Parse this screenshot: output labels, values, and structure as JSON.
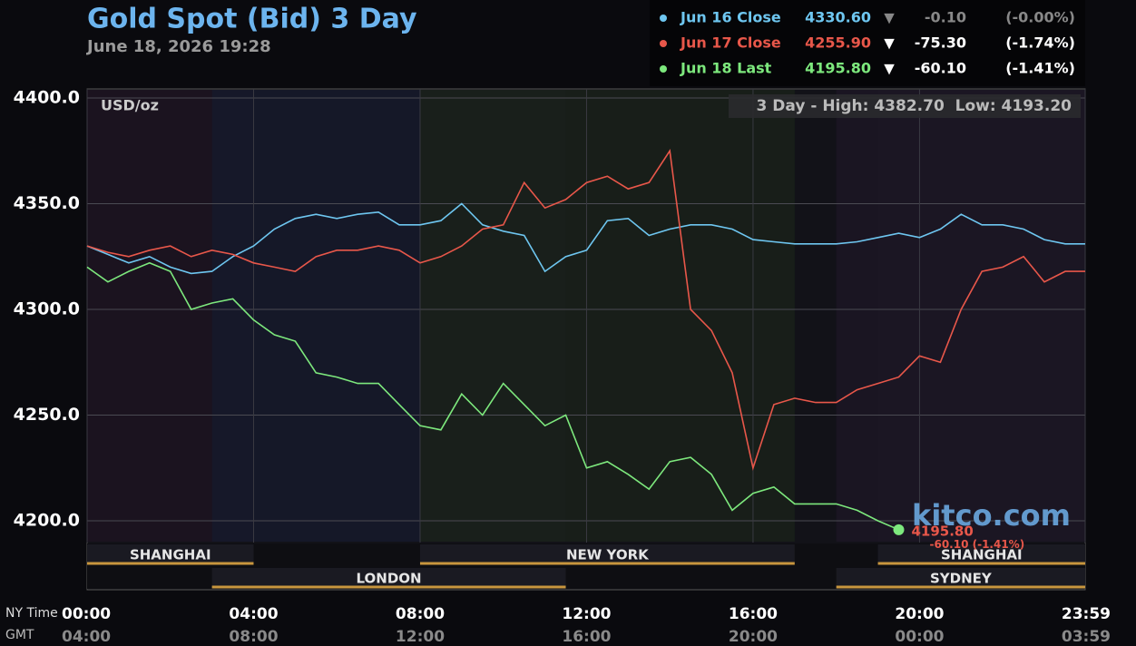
{
  "chart_data": {
    "type": "line",
    "title": "Gold Spot (Bid) 3 Day",
    "subtitle": "June 18, 2026 19:28",
    "unit_label": "USD/oz",
    "range_label": "3 Day - High: 4382.70  Low: 4193.20",
    "watermark": "kitco.com",
    "x_row_labels": [
      "NY Time",
      "GMT"
    ],
    "x": [
      0,
      0.5,
      1,
      1.5,
      2,
      2.5,
      3,
      3.5,
      4,
      4.5,
      5,
      5.5,
      6,
      6.5,
      7,
      7.5,
      8,
      8.5,
      9,
      9.5,
      10,
      10.5,
      11,
      11.5,
      12,
      12.5,
      13,
      13.5,
      14,
      14.5,
      15,
      15.5,
      16,
      16.5,
      17,
      17.5,
      18,
      18.5,
      19,
      19.5,
      20,
      20.5,
      21,
      21.5,
      22,
      22.5,
      23,
      23.5,
      23.98
    ],
    "xlim": [
      0,
      23.98
    ],
    "xticks": [
      {
        "value": 0,
        "label": "00:00"
      },
      {
        "value": 4,
        "label": "04:00"
      },
      {
        "value": 8,
        "label": "08:00"
      },
      {
        "value": 12,
        "label": "12:00"
      },
      {
        "value": 16,
        "label": "16:00"
      },
      {
        "value": 20,
        "label": "20:00"
      },
      {
        "value": 23.98,
        "label": "23:59"
      }
    ],
    "gmt_labels": [
      "04:00",
      "08:00",
      "12:00",
      "16:00",
      "20:00",
      "00:00",
      "03:59"
    ],
    "ylim": [
      4167.4,
      4404.3
    ],
    "yticks": [
      {
        "value": 4200,
        "label": "4200.0"
      },
      {
        "value": 4250,
        "label": "4250.0"
      },
      {
        "value": 4300,
        "label": "4300.0"
      },
      {
        "value": 4350,
        "label": "4350.0"
      },
      {
        "value": 4400,
        "label": "4400.0"
      }
    ],
    "grid": true,
    "series": [
      {
        "name": "Jun 16 Close",
        "color": "#6ec6f0",
        "values": [
          4330,
          4326,
          4322,
          4325,
          4320,
          4317,
          4318,
          4325,
          4330,
          4338,
          4343,
          4345,
          4343,
          4345,
          4346,
          4340,
          4340,
          4342,
          4350,
          4340,
          4337,
          4335,
          4318,
          4325,
          4328,
          4342,
          4343,
          4335,
          4338,
          4340,
          4340,
          4338,
          4333,
          4332,
          4331,
          4331,
          4331,
          4332,
          4334,
          4336,
          4334,
          4338,
          4345,
          4340,
          4340,
          4338,
          4333,
          4331,
          4331
        ]
      },
      {
        "name": "Jun 17 Close",
        "color": "#e8574a",
        "values": [
          4330,
          4327,
          4325,
          4328,
          4330,
          4325,
          4328,
          4326,
          4322,
          4320,
          4318,
          4325,
          4328,
          4328,
          4330,
          4328,
          4322,
          4325,
          4330,
          4338,
          4340,
          4360,
          4348,
          4352,
          4360,
          4363,
          4357,
          4360,
          4375,
          4300,
          4290,
          4270,
          4225,
          4255,
          4258,
          4256,
          4256,
          4262,
          4265,
          4268,
          4278,
          4275,
          4300,
          4318,
          4320,
          4325,
          4313,
          4318,
          4318
        ]
      },
      {
        "name": "Jun 18 Last",
        "color": "#7de87d",
        "values": [
          4320,
          4313,
          4318,
          4322,
          4318,
          4300,
          4303,
          4305,
          4295,
          4288,
          4285,
          4270,
          4268,
          4265,
          4265,
          4255,
          4245,
          4243,
          4260,
          4250,
          4265,
          4255,
          4245,
          4250,
          4225,
          4228,
          4222,
          4215,
          4228,
          4230,
          4222,
          4205,
          4213,
          4216,
          4208,
          4208,
          4208,
          4205,
          4200,
          4195.8,
          null,
          null,
          null,
          null,
          null,
          null,
          null,
          null,
          null
        ]
      }
    ],
    "legend": [
      {
        "label": "Jun 16 Close",
        "price": "4330.60",
        "arrow": "▼",
        "change": "-0.10",
        "pct": "(-0.00%)"
      },
      {
        "label": "Jun 17 Close",
        "price": "4255.90",
        "arrow": "▼",
        "change": "-75.30",
        "pct": "(-1.74%)"
      },
      {
        "label": "Jun 18 Last",
        "price": "4195.80",
        "arrow": "▼",
        "change": "-60.10",
        "pct": "(-1.41%)"
      }
    ],
    "sessions": [
      {
        "name": "SHANGHAI",
        "start": 0,
        "end": 4,
        "row": 1
      },
      {
        "name": "LONDON",
        "start": 3,
        "end": 11.5,
        "row": 2
      },
      {
        "name": "NEW YORK",
        "start": 8,
        "end": 17,
        "row": 1
      },
      {
        "name": "SYDNEY",
        "start": 18,
        "end": 23.98,
        "row": 2
      },
      {
        "name": "SHANGHAI",
        "start": 19,
        "end": 23.98,
        "row": 1
      }
    ]
  }
}
